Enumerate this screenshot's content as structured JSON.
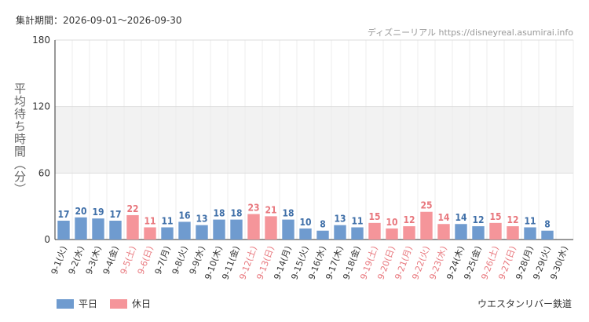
{
  "period_label": "集計期間：2026-09-01～2026-09-30",
  "source_label": "ディズニーリアル https://disneyreal.asumirai.info",
  "attraction": "ウエスタンリバー鉄道",
  "colors": {
    "weekday": "#6f9bcf",
    "holiday": "#f5959a",
    "holiday_text": "#e8777d",
    "weekday_text": "#3f6fa8"
  },
  "chart_data": {
    "type": "bar",
    "ylabel": "平均待ち時間（分）",
    "ylim": [
      0,
      180
    ],
    "yticks": [
      0,
      60,
      120,
      180
    ],
    "shaded_band": [
      60,
      120
    ],
    "categories": [
      "9-1(火)",
      "9-2(水)",
      "9-3(木)",
      "9-4(金)",
      "9-5(土)",
      "9-6(日)",
      "9-7(月)",
      "9-8(火)",
      "9-9(水)",
      "9-10(木)",
      "9-11(金)",
      "9-12(土)",
      "9-13(日)",
      "9-14(月)",
      "9-15(火)",
      "9-16(水)",
      "9-17(木)",
      "9-18(金)",
      "9-19(土)",
      "9-20(日)",
      "9-21(月)",
      "9-22(火)",
      "9-23(水)",
      "9-24(木)",
      "9-25(金)",
      "9-26(土)",
      "9-27(日)",
      "9-28(月)",
      "9-29(火)",
      "9-30(水)"
    ],
    "values": [
      17,
      20,
      19,
      17,
      22,
      11,
      11,
      16,
      13,
      18,
      18,
      23,
      21,
      18,
      10,
      8,
      13,
      11,
      15,
      10,
      12,
      25,
      14,
      14,
      12,
      15,
      12,
      11,
      8,
      null
    ],
    "holiday": [
      false,
      false,
      false,
      false,
      true,
      true,
      false,
      false,
      false,
      false,
      false,
      true,
      true,
      false,
      false,
      false,
      false,
      false,
      true,
      true,
      true,
      true,
      true,
      false,
      false,
      true,
      true,
      false,
      false,
      false
    ],
    "legend": [
      {
        "name": "平日",
        "key": "weekday"
      },
      {
        "name": "休日",
        "key": "holiday"
      }
    ]
  }
}
